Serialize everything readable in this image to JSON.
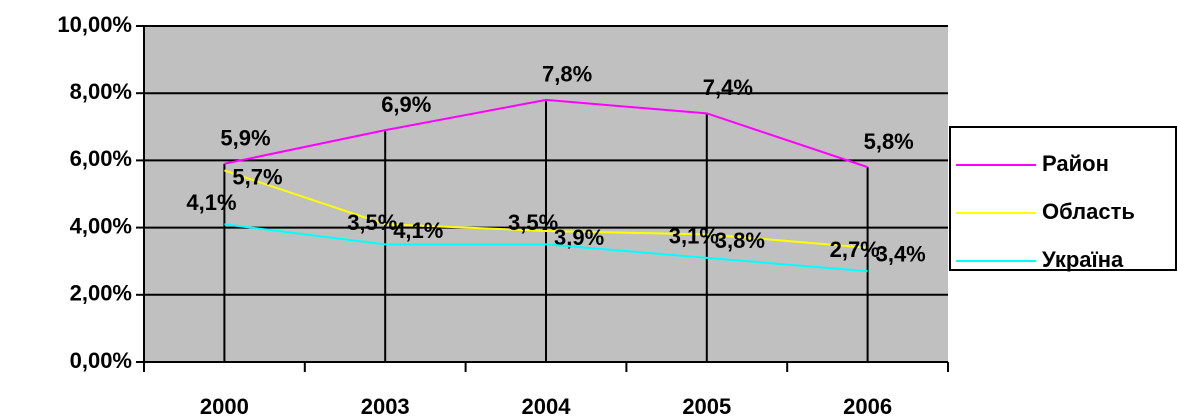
{
  "chart_data": {
    "type": "line",
    "categories": [
      "2000",
      "2003",
      "2004",
      "2005",
      "2006"
    ],
    "series": [
      {
        "name": "Район",
        "color": "#ff00ff",
        "values": [
          5.9,
          6.9,
          7.8,
          7.4,
          5.8
        ],
        "value_labels": [
          "5,9%",
          "6,9%",
          "7,8%",
          "7,4%",
          "5,8%"
        ]
      },
      {
        "name": "Область",
        "color": "#ffff00",
        "values": [
          5.7,
          4.1,
          3.9,
          3.8,
          3.4
        ],
        "value_labels": [
          "5,7%",
          "4,1%",
          "3,9%",
          "3,8%",
          "3,4%"
        ]
      },
      {
        "name": "Україна",
        "color": "#00ffff",
        "values": [
          4.1,
          3.5,
          3.5,
          3.1,
          2.7
        ],
        "value_labels": [
          "4,1%",
          "3,5%",
          "3,5%",
          "3,1%",
          "2,7%"
        ]
      }
    ],
    "ylim": [
      0,
      10
    ],
    "yticks": [
      {
        "value": 0,
        "label": "0,00%"
      },
      {
        "value": 2,
        "label": "2,00%"
      },
      {
        "value": 4,
        "label": "4,00%"
      },
      {
        "value": 6,
        "label": "6,00%"
      },
      {
        "value": 8,
        "label": "8,00%"
      },
      {
        "value": 10,
        "label": "10,00%"
      }
    ],
    "grid": true,
    "legend": "right",
    "background": "#c0c0c0"
  }
}
